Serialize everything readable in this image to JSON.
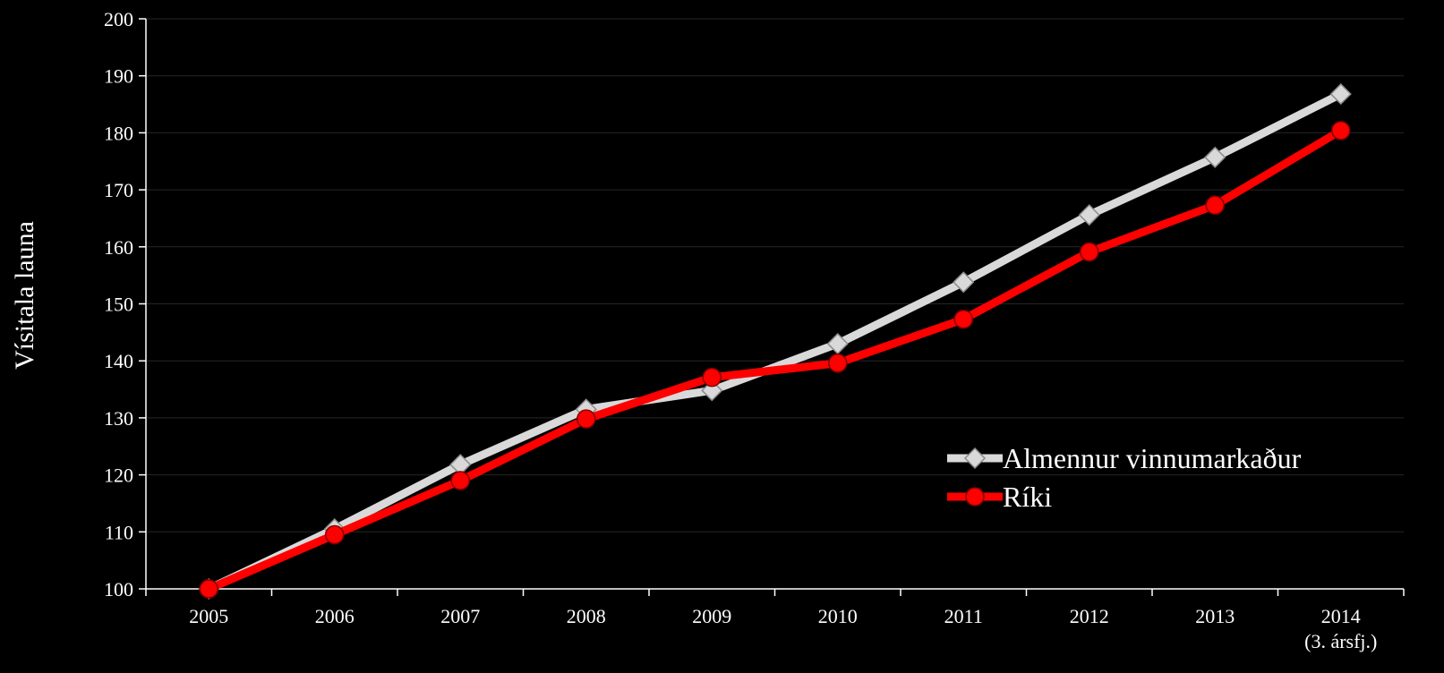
{
  "chart_data": {
    "type": "line",
    "title": "",
    "ylabel": "Vísitala launa",
    "xlabel": "",
    "categories": [
      "2005",
      "2006",
      "2007",
      "2008",
      "2009",
      "2010",
      "2011",
      "2012",
      "2013",
      "2014"
    ],
    "category_sublabels": [
      "",
      "",
      "",
      "",
      "",
      "",
      "",
      "",
      "",
      "(3. ársfj.)"
    ],
    "ylim": [
      100,
      200
    ],
    "yticks": [
      100,
      110,
      120,
      130,
      140,
      150,
      160,
      170,
      180,
      190,
      200
    ],
    "grid": true,
    "legend_position": "right",
    "series": [
      {
        "name": "Almennur vinnumarkaður",
        "color": "#d9d9d9",
        "marker": "diamond",
        "values": [
          100,
          110.5,
          121.8,
          131.5,
          134.8,
          143,
          153.8,
          165.6,
          175.7,
          186.8
        ]
      },
      {
        "name": "Ríki",
        "color": "#ff0000",
        "marker": "circle",
        "values": [
          100,
          109.5,
          119,
          129.8,
          137.1,
          139.6,
          147.3,
          159.1,
          167.3,
          180.4
        ]
      }
    ]
  }
}
